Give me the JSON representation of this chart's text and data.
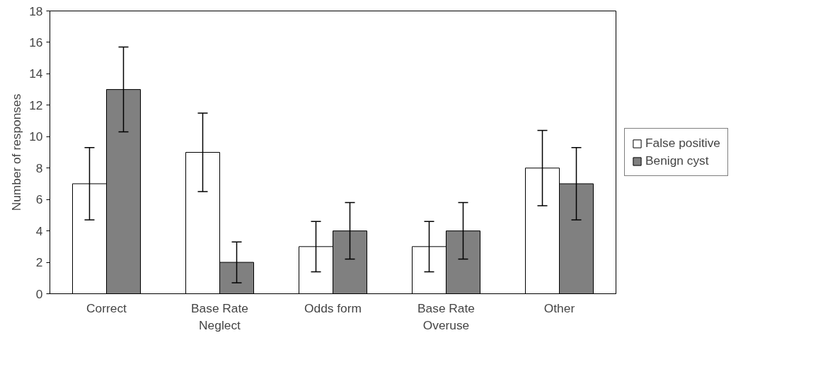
{
  "chart_data": {
    "type": "bar",
    "ylabel": "Number of responses",
    "categories": [
      "Correct",
      "Base Rate\nNeglect",
      "Odds form",
      "Base Rate\nOveruse",
      "Other"
    ],
    "series": [
      {
        "name": "False positive",
        "color": "#ffffff",
        "values": [
          7,
          9,
          3,
          3,
          8
        ],
        "errors": [
          2.3,
          2.5,
          1.6,
          1.6,
          2.4
        ]
      },
      {
        "name": "Benign cyst",
        "color": "#808080",
        "values": [
          13,
          2,
          4,
          4,
          7
        ],
        "errors": [
          2.7,
          1.3,
          1.8,
          1.8,
          2.3
        ]
      }
    ],
    "ylim": [
      0,
      18
    ],
    "yticks": [
      0,
      2,
      4,
      6,
      8,
      10,
      12,
      14,
      16,
      18
    ],
    "grid": false,
    "legend": "right"
  }
}
